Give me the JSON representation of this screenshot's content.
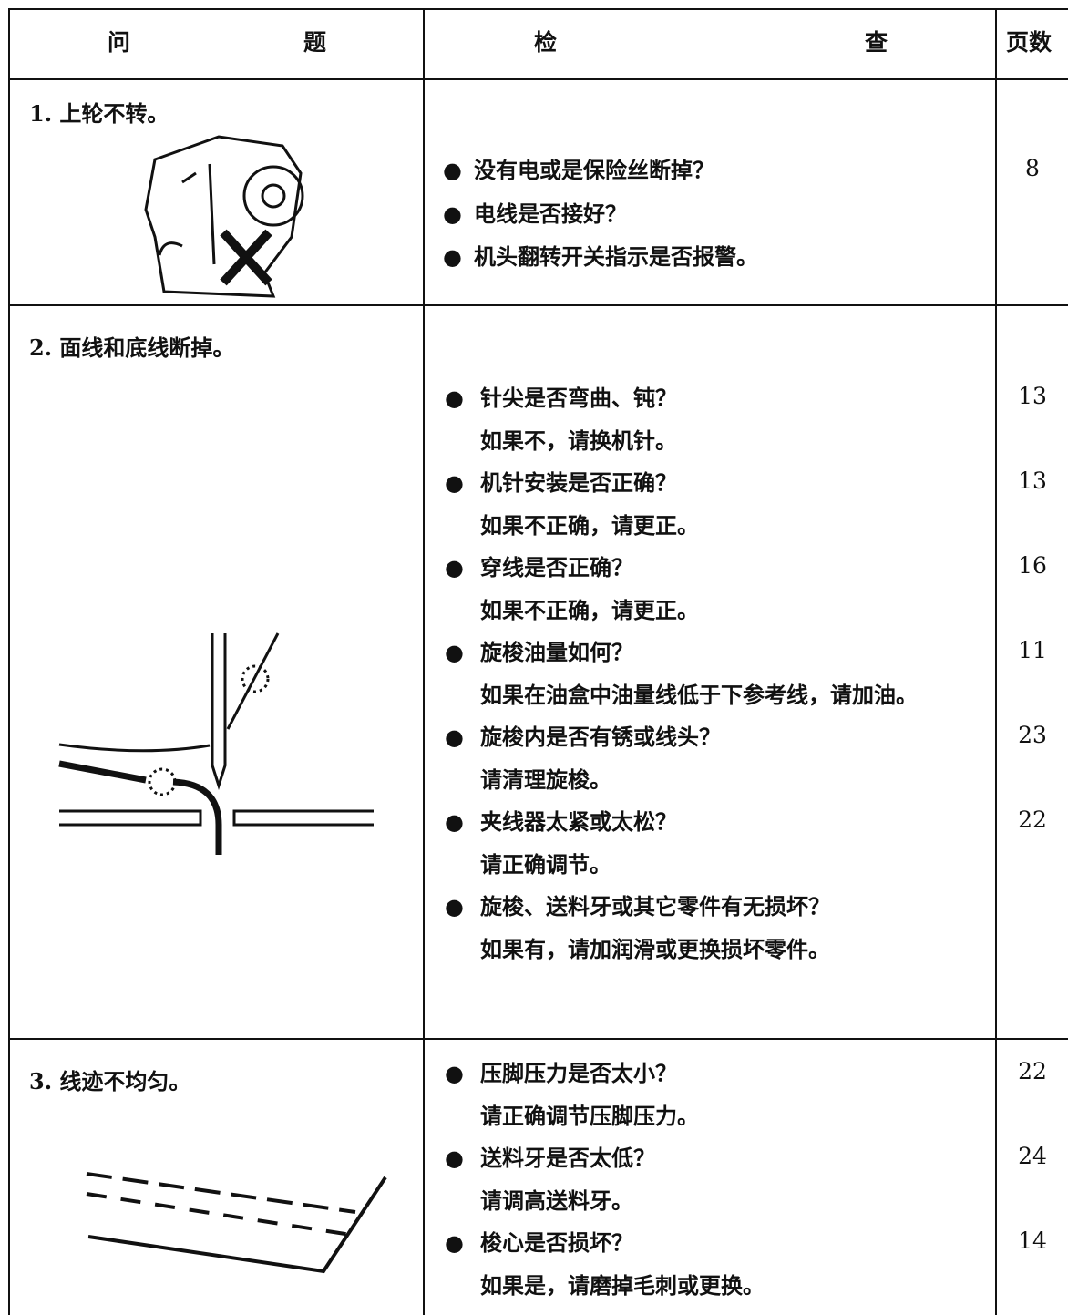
{
  "header": {
    "problem": "问题",
    "check": "检查",
    "page": "页数"
  },
  "rows": [
    {
      "problem": "1. 上轮不转。",
      "checks": [
        {
          "question": "没有电或是保险丝断掉？",
          "page": "8"
        },
        {
          "question": "电线是否接好？"
        },
        {
          "question": "机头翻转开关指示是否报警。"
        }
      ]
    },
    {
      "problem": "2. 面线和底线断掉。",
      "checks": [
        {
          "question": "针尖是否弯曲、钝？",
          "action": "如果不，请换机针。",
          "page": "13"
        },
        {
          "question": "机针安装是否正确？",
          "action": "如果不正确，请更正。",
          "page": "13"
        },
        {
          "question": "穿线是否正确？",
          "action": "如果不正确，请更正。",
          "page": "16"
        },
        {
          "question": "旋梭油量如何？",
          "action": "如果在油盒中油量线低于下参考线，请加油。",
          "page": "11"
        },
        {
          "question": "旋梭内是否有锈或线头？",
          "action": "请清理旋梭。",
          "page": "23"
        },
        {
          "question": "夹线器太紧或太松？",
          "action": "请正确调节。",
          "page": "22"
        },
        {
          "question": "旋梭、送料牙或其它零件有无损坏？",
          "action": "如果有，请加润滑或更换损坏零件。"
        }
      ]
    },
    {
      "problem": "3. 线迹不均匀。",
      "checks": [
        {
          "question": "压脚压力是否太小？",
          "action": "请正确调节压脚压力。",
          "page": "22"
        },
        {
          "question": "送料牙是否太低？",
          "action": "请调高送料牙。",
          "page": "24"
        },
        {
          "question": "梭心是否损坏？",
          "action": "如果是，请磨掉毛刺或更换。",
          "page": "14"
        }
      ]
    }
  ]
}
